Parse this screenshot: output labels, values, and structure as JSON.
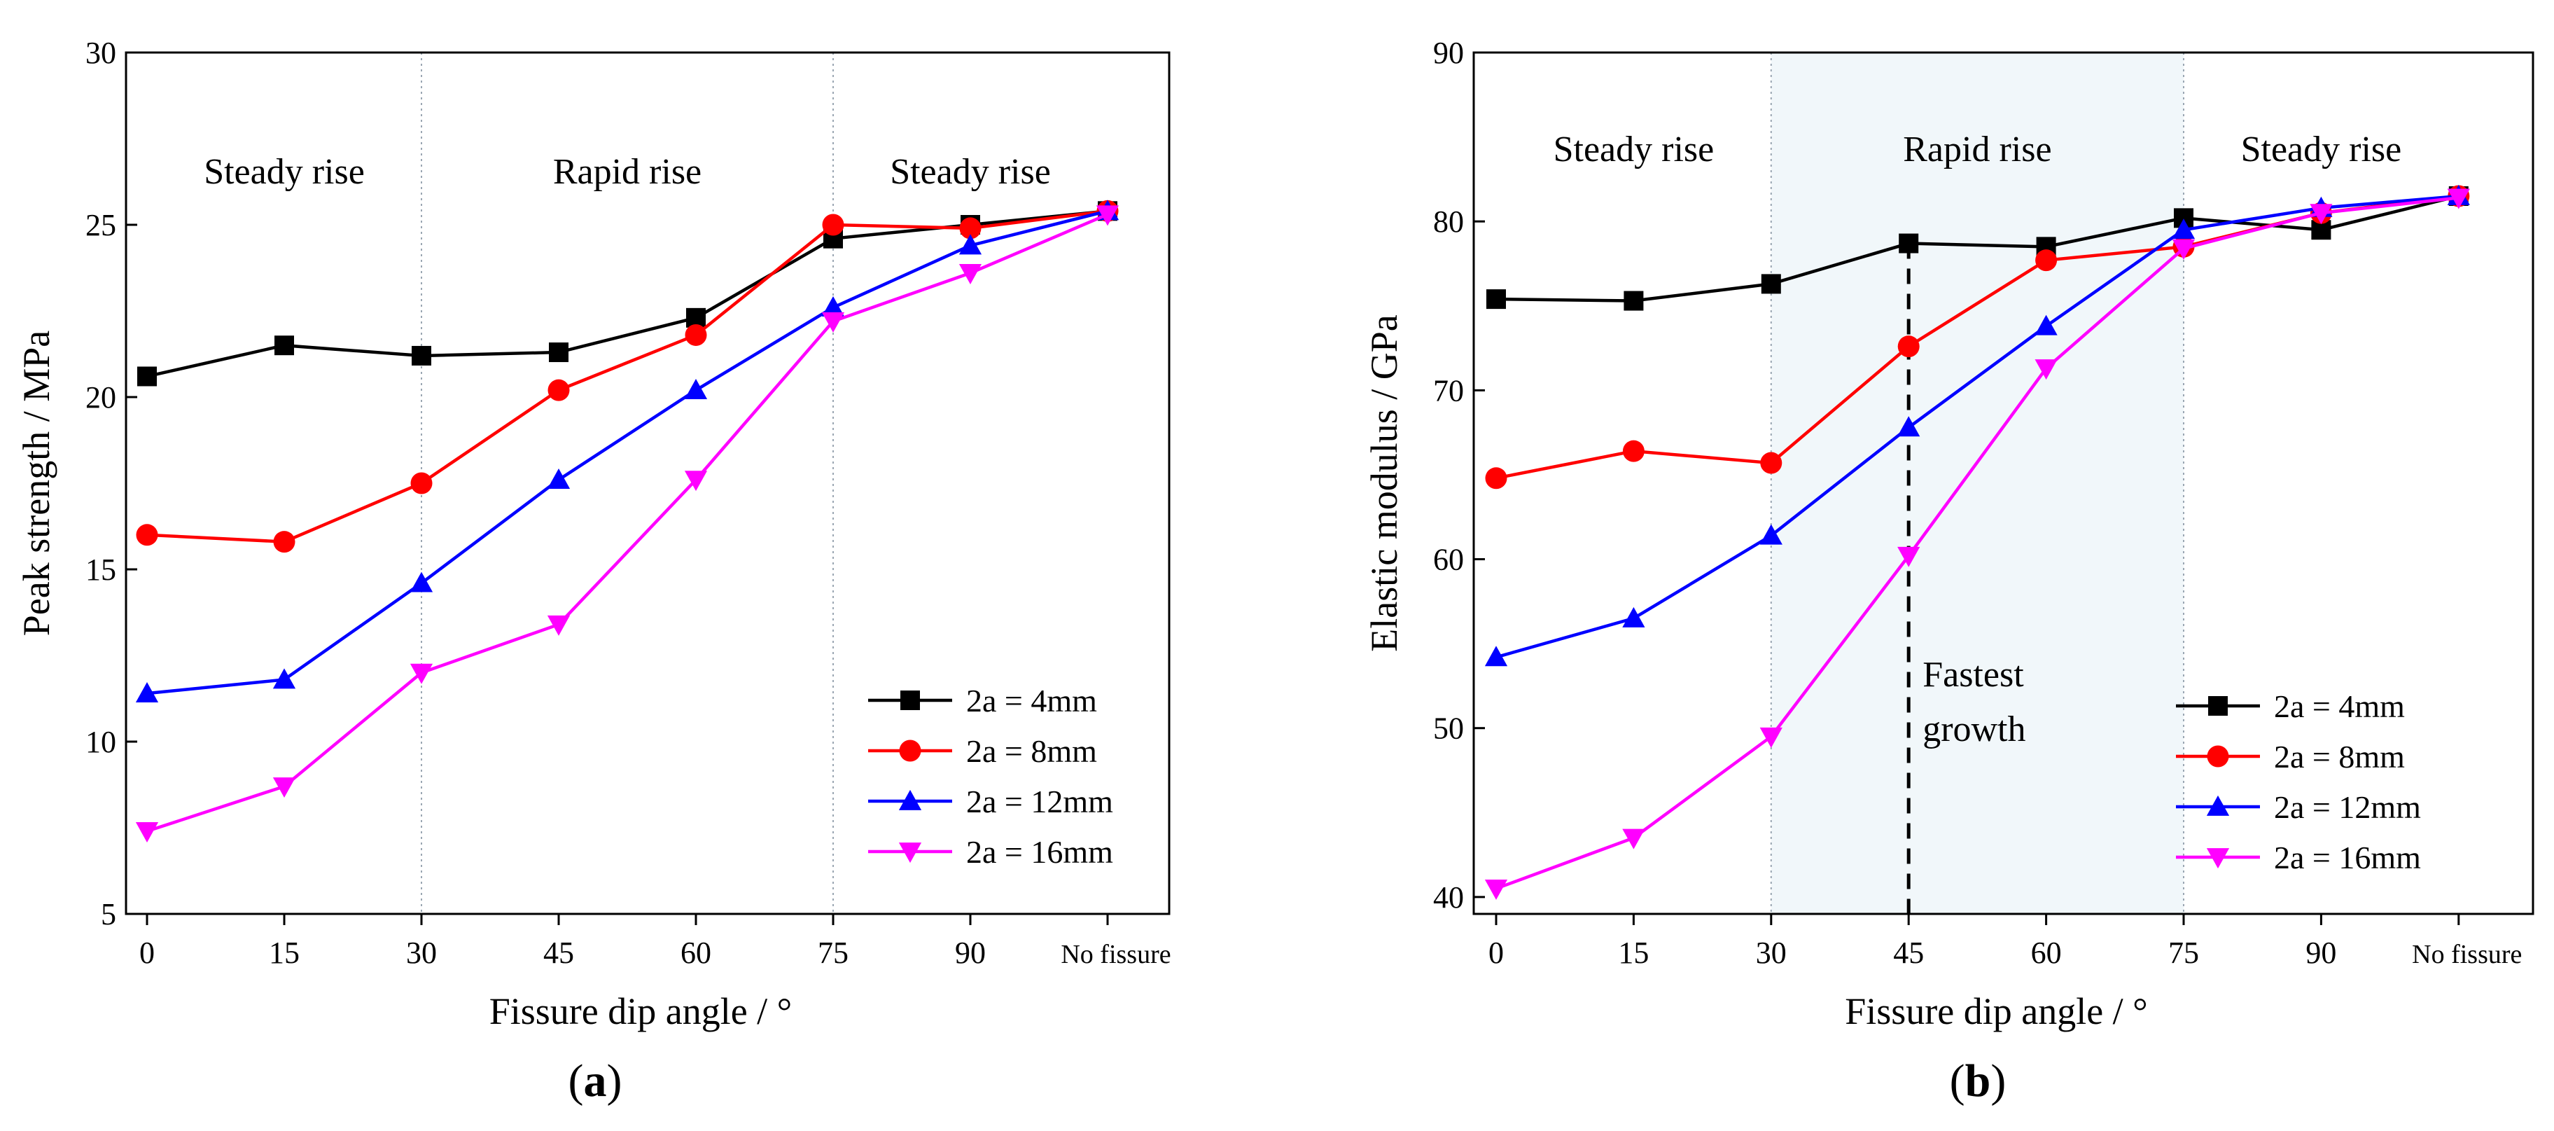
{
  "series_colors": {
    "2a = 4mm": "#000000",
    "2a = 8mm": "#ff0000",
    "2a = 12mm": "#0000ff",
    "2a = 16mm": "#ff00ff"
  },
  "series_markers": {
    "2a = 4mm": "square",
    "2a = 8mm": "circle",
    "2a = 12mm": "triangle-up",
    "2a = 16mm": "triangle-down"
  },
  "panels": [
    {
      "label_open": "(",
      "label_letter": "a",
      "label_close": ")"
    },
    {
      "label_open": "(",
      "label_letter": "b",
      "label_close": ")"
    }
  ],
  "chart_data": [
    {
      "type": "line",
      "panel": "a",
      "xlabel": "Fissure dip angle / °",
      "ylabel": "Peak strength / MPa",
      "categories": [
        "0",
        "15",
        "30",
        "45",
        "60",
        "75",
        "90",
        "No fissure"
      ],
      "ylim": [
        5,
        30
      ],
      "yticks": [
        5,
        10,
        15,
        20,
        25,
        30
      ],
      "regions": [
        {
          "label": "Steady rise",
          "from": "0",
          "to": "30"
        },
        {
          "label": "Rapid rise",
          "from": "30",
          "to": "75"
        },
        {
          "label": "Steady rise",
          "from": "75",
          "to": "No fissure"
        }
      ],
      "legend_position": "bottom-right",
      "series": [
        {
          "name": "2a = 4mm",
          "values": [
            20.6,
            21.5,
            21.2,
            21.3,
            22.3,
            24.6,
            25.0,
            25.4
          ]
        },
        {
          "name": "2a = 8mm",
          "values": [
            16.0,
            15.8,
            17.5,
            20.2,
            21.8,
            25.0,
            24.9,
            25.4
          ]
        },
        {
          "name": "2a = 12mm",
          "values": [
            11.4,
            11.8,
            14.6,
            17.6,
            20.2,
            22.6,
            24.4,
            25.4
          ]
        },
        {
          "name": "2a = 16mm",
          "values": [
            7.4,
            8.7,
            12.0,
            13.4,
            17.6,
            22.2,
            23.6,
            25.3
          ]
        }
      ]
    },
    {
      "type": "line",
      "panel": "b",
      "xlabel": "Fissure dip angle / °",
      "ylabel": "Elastic modulus / GPa",
      "categories": [
        "0",
        "15",
        "30",
        "45",
        "60",
        "75",
        "90",
        "No fissure"
      ],
      "ylim": [
        39,
        90
      ],
      "yticks": [
        40,
        50,
        60,
        70,
        80,
        90
      ],
      "regions": [
        {
          "label": "Steady rise",
          "from": "0",
          "to": "30"
        },
        {
          "label": "Rapid rise",
          "from": "30",
          "to": "75"
        },
        {
          "label": "Steady rise",
          "from": "75",
          "to": "No fissure"
        }
      ],
      "annotation": {
        "line1": "Fastest",
        "line2": "growth",
        "at": "45"
      },
      "legend_position": "bottom-right",
      "series": [
        {
          "name": "2a = 4mm",
          "values": [
            75.4,
            75.3,
            76.3,
            78.7,
            78.5,
            80.2,
            79.5,
            81.5
          ]
        },
        {
          "name": "2a = 8mm",
          "values": [
            64.8,
            66.4,
            65.7,
            72.6,
            77.7,
            78.5,
            80.5,
            81.5
          ]
        },
        {
          "name": "2a = 12mm",
          "values": [
            54.2,
            56.5,
            61.4,
            67.8,
            73.8,
            79.5,
            80.8,
            81.5
          ]
        },
        {
          "name": "2a = 16mm",
          "values": [
            40.5,
            43.5,
            49.5,
            60.2,
            71.3,
            78.4,
            80.5,
            81.4
          ]
        }
      ]
    }
  ]
}
